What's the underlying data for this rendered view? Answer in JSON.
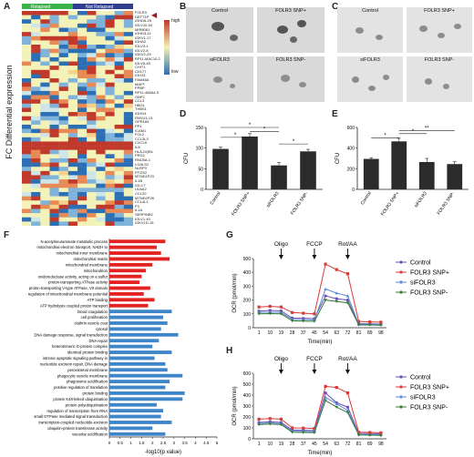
{
  "panels": {
    "A": "A",
    "B": "B",
    "C": "C",
    "D": "D",
    "E": "E",
    "F": "F",
    "G": "G",
    "H": "H"
  },
  "heatmap": {
    "groups": [
      "Relapsed",
      "Not Relapsed"
    ],
    "group_colors": [
      "#3bb34a",
      "#2f3e8f"
    ],
    "ylabel": "FC Differential expression",
    "legend_high": "high",
    "legend_low": "low",
    "genes": [
      "FOLR3",
      "DEFT1P",
      "IGHD6-25",
      "IGLV10-54",
      "MIR8081",
      "IGHD3-11",
      "IGKV1-17",
      "IGHA2",
      "IGLV3-1",
      "IGLV2-8",
      "IGKV2-29",
      "RP11-MAC10.2",
      "IGLV5-45",
      "CHIT1",
      "CD177",
      "IGHJ3",
      "FAM46A",
      "MAFF",
      "PPBP",
      "RP11-466A4.3",
      "GBP2",
      "CCL3",
      "HBG1",
      "THBS1",
      "IGHG4",
      "RNVU1-13",
      "GPR183",
      "PF4",
      "ICAM1",
      "FOL2",
      "CCL3L3",
      "CXCL8",
      "IL8",
      "HLA-DQB1",
      "PRG2",
      "RNU5A-1",
      "LGALS2",
      "NLRP3",
      "PTGS2",
      "MTND1P23",
      "IL1B",
      "IGLC7",
      "ULBA2",
      "CCL20",
      "MTND2P28",
      "CCL4L1",
      "F3",
      "IL1A",
      "SERPINB2",
      "IGLV1-40",
      "IGKV1D-16"
    ]
  },
  "B": {
    "labels": [
      "Control",
      "FOLR3 SNP+",
      "siFOLR3",
      "FOLR3 SNP-"
    ]
  },
  "C": {
    "labels": [
      "Control",
      "FOLR3 SNP+",
      "siFOLR3",
      "FOLR3 SNP-"
    ]
  },
  "D": {
    "chart_data": {
      "type": "bar",
      "categories": [
        "Control",
        "FOLR3 SNP+",
        "siFOLR3",
        "FOLR3 SNP-"
      ],
      "values": [
        98,
        128,
        58,
        92
      ],
      "errors": [
        4,
        7,
        7,
        5
      ],
      "ylabel": "CFU",
      "ylim": [
        0,
        150
      ],
      "yticks": [
        0,
        50,
        100,
        150
      ],
      "sig": [
        "*",
        "*",
        "*",
        "*"
      ]
    }
  },
  "E": {
    "chart_data": {
      "type": "bar",
      "categories": [
        "Control",
        "FOLR3 SNP+",
        "siFOLR3",
        "FOLR3 SNP-"
      ],
      "values": [
        295,
        465,
        265,
        245
      ],
      "errors": [
        12,
        30,
        35,
        22
      ],
      "ylabel": "CFU",
      "ylim": [
        0,
        600
      ],
      "yticks": [
        0,
        200,
        400,
        600
      ],
      "sig": [
        "*",
        "*",
        "**"
      ]
    }
  },
  "F": {
    "chart_data": {
      "type": "bar",
      "orientation": "horizontal",
      "xlabel": "-log10(p value)",
      "xticks": [
        "0",
        "0.5",
        "1",
        "1.5",
        "2",
        "2.5",
        "3",
        "3.5",
        "4",
        "4.5",
        "5"
      ],
      "categories": [
        "N-acetylneuraminate metabolic process",
        "mitochondrial electron transport, NADH to",
        "mitochondrial inner membrane",
        "mitochondrial matrix",
        "mitochondrial membrane",
        "mitochondrion",
        "oxidoreductase activity, acting on a sulfur",
        "proton-transporting ATPase activity",
        "proton-transporting V-type ATPase, V0 domain",
        "regulation of mitochondrial membrane potential",
        "ATP binding",
        "ATP hydrolysis coupled proton transport",
        "blood coagulation",
        "cell proliferation",
        "clathrin vesicle coat",
        "cytosol",
        "DNA damage response, signal transduction",
        "DNA repair",
        "heterotrimeric G-protein complex",
        "identical protein binding",
        "intrinsic apoptotic signaling pathway in",
        "nucleotide excision repair, DNA damage",
        "peroxisomal membrane",
        "phagocytic vesicle membrane",
        "phagosome acidification",
        "positive regulation of translation",
        "protein binding",
        "protein K48-linked ubiquitination",
        "protein polyubiquitination",
        "regulation of transcription from RNA",
        "small GTPase mediated signal transduction",
        "transcription-coupled nucleotide-excision",
        "ubiquitin-protein transferase activity",
        "vacuolar acidification"
      ],
      "values": [
        2.6,
        2.2,
        2.4,
        2.8,
        2.0,
        1.7,
        1.5,
        1.4,
        1.9,
        1.6,
        2.1,
        1.8,
        2.9,
        2.5,
        2.7,
        2.4,
        3.2,
        2.3,
        2.0,
        2.9,
        2.1,
        2.6,
        2.7,
        3.4,
        2.8,
        2.6,
        3.5,
        3.4,
        2.2,
        2.5,
        2.4,
        2.9,
        2.0,
        2.6
      ],
      "colors": [
        "red",
        "red",
        "red",
        "red",
        "red",
        "red",
        "red",
        "red",
        "red",
        "red",
        "red",
        "red",
        "blue",
        "blue",
        "blue",
        "blue",
        "blue",
        "blue",
        "blue",
        "blue",
        "blue",
        "blue",
        "blue",
        "blue",
        "blue",
        "blue",
        "blue",
        "blue",
        "blue",
        "blue",
        "blue",
        "blue",
        "blue",
        "blue"
      ]
    }
  },
  "G": {
    "chart_data": {
      "type": "line",
      "x": [
        1,
        10,
        19,
        28,
        37,
        45,
        54,
        63,
        72,
        81,
        89,
        98
      ],
      "xlabel": "Time(min)",
      "ylabel": "OCR (pmol/min)",
      "yticks": [
        0,
        100,
        200,
        300,
        400,
        500
      ],
      "ylim": [
        0,
        500
      ],
      "annotations": [
        "Oligo",
        "FCCP",
        "Rot/AA"
      ],
      "series": [
        {
          "name": "Control",
          "color": "#6a4fb3",
          "values": [
            120,
            125,
            122,
            70,
            68,
            66,
            230,
            210,
            200,
            30,
            28,
            26
          ]
        },
        {
          "name": "FOLR3 SNP+",
          "color": "#d93a3a",
          "values": [
            150,
            155,
            150,
            110,
            105,
            100,
            460,
            420,
            390,
            45,
            42,
            40
          ]
        },
        {
          "name": "siFOLR3",
          "color": "#5b8bd6",
          "values": [
            110,
            112,
            110,
            60,
            58,
            55,
            280,
            250,
            230,
            25,
            24,
            22
          ]
        },
        {
          "name": "FOLR3 SNP-",
          "color": "#3a7a3a",
          "values": [
            100,
            102,
            100,
            50,
            48,
            46,
            200,
            190,
            180,
            20,
            20,
            18
          ]
        }
      ]
    }
  },
  "H": {
    "chart_data": {
      "type": "line",
      "x": [
        1,
        10,
        19,
        28,
        37,
        45,
        54,
        63,
        72,
        81,
        89,
        98
      ],
      "xlabel": "Time(min)",
      "ylabel": "OCR (pmol/min)",
      "yticks": [
        0,
        100,
        200,
        300,
        400,
        500,
        600
      ],
      "ylim": [
        0,
        600
      ],
      "annotations": [
        "Oligo",
        "FCCP",
        "Rot/AA"
      ],
      "series": [
        {
          "name": "Control",
          "color": "#6a4fb3",
          "values": [
            150,
            155,
            150,
            80,
            78,
            76,
            420,
            330,
            290,
            50,
            48,
            46
          ]
        },
        {
          "name": "FOLR3 SNP+",
          "color": "#d93a3a",
          "values": [
            180,
            185,
            180,
            100,
            98,
            95,
            480,
            470,
            420,
            60,
            58,
            55
          ]
        },
        {
          "name": "siFOLR3",
          "color": "#5b8bd6",
          "values": [
            140,
            145,
            140,
            70,
            68,
            66,
            380,
            320,
            260,
            40,
            38,
            36
          ]
        },
        {
          "name": "FOLR3 SNP-",
          "color": "#3a7a3a",
          "values": [
            130,
            135,
            130,
            60,
            58,
            56,
            350,
            290,
            240,
            35,
            33,
            30
          ]
        }
      ]
    }
  }
}
